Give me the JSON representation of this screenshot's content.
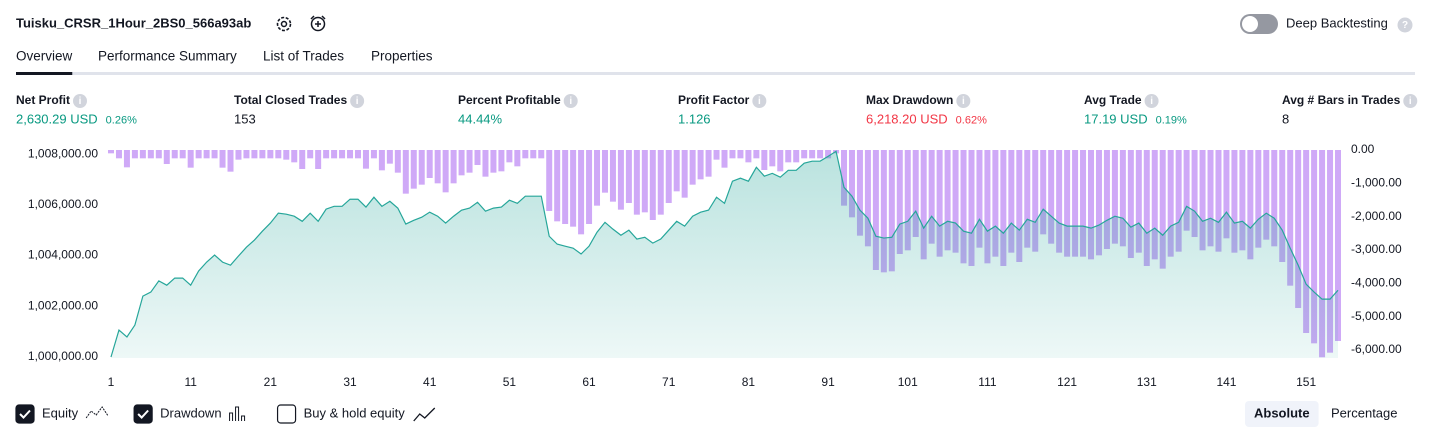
{
  "header": {
    "title": "Tuisku_CRSR_1Hour_2BS0_566a93ab",
    "toggle_label": "Deep Backtesting",
    "toggle_on": false
  },
  "tabs": {
    "items": [
      "Overview",
      "Performance Summary",
      "List of Trades",
      "Properties"
    ],
    "active": 0
  },
  "metrics": [
    {
      "label": "Net Profit",
      "value": "2,630.29 USD",
      "percent": "0.26%",
      "color": "#089981"
    },
    {
      "label": "Total Closed Trades",
      "value": "153",
      "color": "#131722"
    },
    {
      "label": "Percent Profitable",
      "value": "44.44%",
      "color": "#089981"
    },
    {
      "label": "Profit Factor",
      "value": "1.126",
      "color": "#089981"
    },
    {
      "label": "Max Drawdown",
      "value": "6,218.20 USD",
      "percent": "0.62%",
      "color": "#f23645"
    },
    {
      "label": "Avg Trade",
      "value": "17.19 USD",
      "percent": "0.19%",
      "color": "#089981"
    },
    {
      "label": "Avg # Bars in Trades",
      "value": "8",
      "color": "#131722"
    }
  ],
  "chart_data": {
    "type": "equity-drawdown",
    "x": [
      1,
      2,
      3,
      4,
      5,
      6,
      7,
      8,
      9,
      10,
      11,
      12,
      13,
      14,
      15,
      16,
      17,
      18,
      19,
      20,
      21,
      22,
      23,
      24,
      25,
      26,
      27,
      28,
      29,
      30,
      31,
      32,
      33,
      34,
      35,
      36,
      37,
      38,
      39,
      40,
      41,
      42,
      43,
      44,
      45,
      46,
      47,
      48,
      49,
      50,
      51,
      52,
      53,
      54,
      55,
      56,
      57,
      58,
      59,
      60,
      61,
      62,
      63,
      64,
      65,
      66,
      67,
      68,
      69,
      70,
      71,
      72,
      73,
      74,
      75,
      76,
      77,
      78,
      79,
      80,
      81,
      82,
      83,
      84,
      85,
      86,
      87,
      88,
      89,
      90,
      91,
      92,
      93,
      94,
      95,
      96,
      97,
      98,
      99,
      100,
      101,
      102,
      103,
      104,
      105,
      106,
      107,
      108,
      109,
      110,
      111,
      112,
      113,
      114,
      115,
      116,
      117,
      118,
      119,
      120,
      121,
      122,
      123,
      124,
      125,
      126,
      127,
      128,
      129,
      130,
      131,
      132,
      133,
      134,
      135,
      136,
      137,
      138,
      139,
      140,
      141,
      142,
      143,
      144,
      145,
      146,
      147,
      148,
      149,
      150,
      151,
      152,
      153,
      154,
      155
    ],
    "xlim": [
      1,
      155
    ],
    "xticks": [
      1,
      11,
      21,
      31,
      41,
      51,
      61,
      71,
      81,
      91,
      101,
      111,
      121,
      131,
      141,
      151
    ],
    "ylim": [
      999960,
      1008240
    ],
    "yticks": [
      {
        "value": 1000000,
        "label": "1,000,000.00"
      },
      {
        "value": 1002000,
        "label": "1,002,000.00"
      },
      {
        "value": 1004000,
        "label": "1,004,000.00"
      },
      {
        "value": 1006000,
        "label": "1,006,000.00"
      },
      {
        "value": 1008000,
        "label": "1,008,000.00"
      }
    ],
    "y2lim": [
      -6240,
      60
    ],
    "y2ticks": [
      {
        "value": 0,
        "label": "0.00"
      },
      {
        "value": -1000,
        "label": "-1,000.00"
      },
      {
        "value": -2000,
        "label": "-2,000.00"
      },
      {
        "value": -3000,
        "label": "-3,000.00"
      },
      {
        "value": -4000,
        "label": "-4,000.00"
      },
      {
        "value": -5000,
        "label": "-5,000.00"
      },
      {
        "value": -6000,
        "label": "-6,000.00"
      }
    ],
    "series": [
      {
        "name": "Equity",
        "type": "area",
        "color": "#26a69a",
        "checked": true,
        "values": [
          1000000,
          1001060,
          1000790,
          1001260,
          1002400,
          1002560,
          1003000,
          1002830,
          1003110,
          1003110,
          1002830,
          1003390,
          1003740,
          1004020,
          1003740,
          1003620,
          1003980,
          1004330,
          1004610,
          1004960,
          1005280,
          1005670,
          1005630,
          1005550,
          1005350,
          1005670,
          1005350,
          1005830,
          1005940,
          1005940,
          1006220,
          1006220,
          1005910,
          1006300,
          1005940,
          1006140,
          1005870,
          1005240,
          1005390,
          1005510,
          1005710,
          1005550,
          1005280,
          1005550,
          1005790,
          1005870,
          1006100,
          1005750,
          1005870,
          1005910,
          1006180,
          1006060,
          1006340,
          1006340,
          1006340,
          1004760,
          1004450,
          1004370,
          1004290,
          1004060,
          1004370,
          1004920,
          1005310,
          1005040,
          1004800,
          1005000,
          1004650,
          1004720,
          1004490,
          1004650,
          1005000,
          1005350,
          1005160,
          1005550,
          1005710,
          1005790,
          1006300,
          1006060,
          1006930,
          1007050,
          1006930,
          1007480,
          1007130,
          1007240,
          1007090,
          1007360,
          1007360,
          1007640,
          1007720,
          1007720,
          1007910,
          1008110,
          1006690,
          1006340,
          1005790,
          1005470,
          1004760,
          1004690,
          1004720,
          1005240,
          1005350,
          1005750,
          1005080,
          1005550,
          1005160,
          1005350,
          1005280,
          1004960,
          1004880,
          1005430,
          1004960,
          1005160,
          1004880,
          1005280,
          1005000,
          1005430,
          1005310,
          1005830,
          1005550,
          1005280,
          1005160,
          1005160,
          1005160,
          1005080,
          1005200,
          1005390,
          1005550,
          1005470,
          1005120,
          1005280,
          1004880,
          1005080,
          1004800,
          1005160,
          1005310,
          1005940,
          1005750,
          1005350,
          1005470,
          1005310,
          1005710,
          1005280,
          1005350,
          1005080,
          1005430,
          1005670,
          1005470,
          1005000,
          1004290,
          1003620,
          1002870,
          1002560,
          1002280,
          1002280,
          1002630.29
        ]
      },
      {
        "name": "Drawdown",
        "type": "bar",
        "axis": "y2",
        "color": "#cfa9f7",
        "checked": true,
        "values": [
          -100,
          -250,
          -520,
          -250,
          -250,
          -250,
          -250,
          -420,
          -250,
          -250,
          -530,
          -250,
          -250,
          -250,
          -530,
          -650,
          -290,
          -250,
          -250,
          -250,
          -250,
          -250,
          -290,
          -370,
          -570,
          -250,
          -570,
          -250,
          -250,
          -250,
          -250,
          -250,
          -560,
          -250,
          -610,
          -410,
          -680,
          -1310,
          -1160,
          -1040,
          -840,
          -1000,
          -1270,
          -1000,
          -760,
          -680,
          -450,
          -800,
          -680,
          -640,
          -370,
          -490,
          -250,
          -250,
          -250,
          -1830,
          -2140,
          -2220,
          -2300,
          -2530,
          -2220,
          -1670,
          -1280,
          -1550,
          -1790,
          -1590,
          -1940,
          -1870,
          -2100,
          -1940,
          -1590,
          -1240,
          -1430,
          -1040,
          -880,
          -800,
          -290,
          -530,
          -250,
          -250,
          -370,
          -250,
          -600,
          -490,
          -640,
          -370,
          -370,
          -250,
          -250,
          -250,
          -250,
          -100,
          -1670,
          -2020,
          -2570,
          -2890,
          -3600,
          -3670,
          -3640,
          -3120,
          -3010,
          -2610,
          -3280,
          -2810,
          -3200,
          -3010,
          -3080,
          -3400,
          -3480,
          -2930,
          -3400,
          -3200,
          -3480,
          -3080,
          -3360,
          -2930,
          -3050,
          -2530,
          -2810,
          -3080,
          -3200,
          -3200,
          -3200,
          -3280,
          -3160,
          -2970,
          -2810,
          -2890,
          -3240,
          -3080,
          -3480,
          -3280,
          -3560,
          -3200,
          -3050,
          -2420,
          -2610,
          -3010,
          -2890,
          -3050,
          -2650,
          -3080,
          -3010,
          -3280,
          -2930,
          -2690,
          -2890,
          -3360,
          -4070,
          -4740,
          -5490,
          -5800,
          -6218.2,
          -6080,
          -5730
        ]
      }
    ],
    "extra_options": [
      {
        "label": "Buy & hold equity",
        "checked": false
      }
    ],
    "scale_buttons": {
      "items": [
        "Absolute",
        "Percentage"
      ],
      "active": 0
    }
  }
}
